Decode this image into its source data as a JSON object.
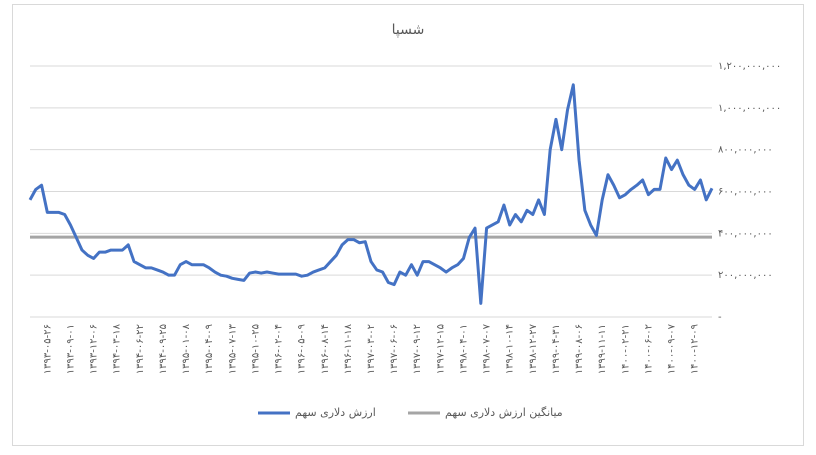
{
  "chart_data": {
    "type": "line",
    "title": "شسپا",
    "categories": [
      null,
      null,
      null,
      "۱۳۹۳-۰۵-۲۶",
      null,
      null,
      null,
      "۱۳۹۳-۰۹-۰۱",
      null,
      null,
      null,
      "۱۳۹۳-۱۲-۰۶",
      null,
      null,
      null,
      "۱۳۹۴-۰۳-۱۸",
      null,
      null,
      null,
      "۱۳۹۴-۰۶-۲۲",
      null,
      null,
      null,
      "۱۳۹۴-۰۹-۲۵",
      null,
      null,
      null,
      "۱۳۹۵-۰۱-۰۸",
      null,
      null,
      null,
      "۱۳۹۵-۰۴-۰۹",
      null,
      null,
      null,
      "۱۳۹۵-۰۷-۱۳",
      null,
      null,
      null,
      "۱۳۹۵-۱۰-۲۵",
      null,
      null,
      null,
      "۱۳۹۶-۰۲-۰۴",
      null,
      null,
      null,
      "۱۳۹۶-۰۵-۰۹",
      null,
      null,
      null,
      "۱۳۹۶-۰۸-۱۴",
      null,
      null,
      null,
      "۱۳۹۶-۱۱-۱۸",
      null,
      null,
      null,
      "۱۳۹۷-۰۳-۰۲",
      null,
      null,
      null,
      "۱۳۹۷-۰۶-۰۶",
      null,
      null,
      null,
      "۱۳۹۷-۰۹-۱۲",
      null,
      null,
      null,
      "۱۳۹۷-۱۲-۱۵",
      null,
      null,
      null,
      "۱۳۹۸-۰۴-۰۱",
      null,
      null,
      null,
      "۱۳۹۸-۰۷-۰۷",
      null,
      null,
      null,
      "۱۳۹۸-۱۰-۱۴",
      null,
      null,
      null,
      "۱۳۹۸-۱۲-۲۷",
      null,
      null,
      null,
      "۱۳۹۹-۰۴-۳۱",
      null,
      null,
      null,
      "۱۳۹۹-۰۸-۰۶",
      null,
      null,
      null,
      "۱۳۹۹-۱۱-۱۱",
      null,
      null,
      null,
      "۱۴۰۰-۰۲-۲۱",
      null,
      null,
      null,
      "۱۴۰۰-۰۶-۰۲",
      null,
      null,
      null,
      "۱۴۰۰-۰۹-۰۷",
      null,
      null,
      null,
      "۱۴۰۰-۱۲-۰۹",
      null,
      null,
      null
    ],
    "series": [
      {
        "name": "ارزش دلاری سهم",
        "color": "#4472c4",
        "values": [
          560000000,
          610000000,
          630000000,
          500000000,
          500000000,
          500000000,
          490000000,
          440000000,
          380000000,
          320000000,
          295000000,
          280000000,
          310000000,
          310000000,
          320000000,
          320000000,
          320000000,
          345000000,
          265000000,
          250000000,
          235000000,
          235000000,
          225000000,
          215000000,
          200000000,
          200000000,
          250000000,
          265000000,
          250000000,
          250000000,
          250000000,
          235000000,
          215000000,
          200000000,
          195000000,
          185000000,
          180000000,
          175000000,
          210000000,
          215000000,
          210000000,
          215000000,
          210000000,
          205000000,
          205000000,
          205000000,
          205000000,
          195000000,
          200000000,
          215000000,
          225000000,
          235000000,
          265000000,
          295000000,
          345000000,
          370000000,
          370000000,
          355000000,
          360000000,
          265000000,
          225000000,
          215000000,
          165000000,
          155000000,
          215000000,
          200000000,
          250000000,
          200000000,
          265000000,
          265000000,
          250000000,
          235000000,
          215000000,
          235000000,
          250000000,
          280000000,
          380000000,
          425000000,
          65000000,
          425000000,
          440000000,
          455000000,
          535000000,
          440000000,
          490000000,
          455000000,
          510000000,
          490000000,
          560000000,
          490000000,
          800000000,
          945000000,
          800000000,
          990000000,
          1110000000,
          750000000,
          510000000,
          440000000,
          390000000,
          560000000,
          680000000,
          630000000,
          570000000,
          585000000,
          610000000,
          630000000,
          655000000,
          585000000,
          610000000,
          610000000,
          760000000,
          705000000,
          750000000,
          680000000,
          630000000,
          610000000,
          655000000,
          560000000,
          615000000
        ]
      },
      {
        "name": "میانگین ارزش دلاری سهم",
        "color": "#a5a5a5",
        "values": [
          382000000,
          382000000,
          382000000,
          382000000,
          382000000,
          382000000,
          382000000,
          382000000,
          382000000,
          382000000,
          382000000,
          382000000,
          382000000,
          382000000,
          382000000,
          382000000,
          382000000,
          382000000,
          382000000,
          382000000,
          382000000,
          382000000,
          382000000,
          382000000,
          382000000,
          382000000,
          382000000,
          382000000,
          382000000,
          382000000,
          382000000,
          382000000,
          382000000,
          382000000,
          382000000,
          382000000,
          382000000,
          382000000,
          382000000,
          382000000,
          382000000,
          382000000,
          382000000,
          382000000,
          382000000,
          382000000,
          382000000,
          382000000,
          382000000,
          382000000,
          382000000,
          382000000,
          382000000,
          382000000,
          382000000,
          382000000,
          382000000,
          382000000,
          382000000,
          382000000,
          382000000,
          382000000,
          382000000,
          382000000,
          382000000,
          382000000,
          382000000,
          382000000,
          382000000,
          382000000,
          382000000,
          382000000,
          382000000,
          382000000,
          382000000,
          382000000,
          382000000,
          382000000,
          382000000,
          382000000,
          382000000,
          382000000,
          382000000,
          382000000,
          382000000,
          382000000,
          382000000,
          382000000,
          382000000,
          382000000,
          382000000,
          382000000,
          382000000,
          382000000,
          382000000,
          382000000,
          382000000,
          382000000,
          382000000,
          382000000,
          382000000,
          382000000,
          382000000,
          382000000,
          382000000,
          382000000,
          382000000,
          382000000,
          382000000,
          382000000,
          382000000,
          382000000,
          382000000,
          382000000,
          382000000,
          382000000,
          382000000,
          382000000,
          382000000
        ]
      }
    ],
    "ylim": [
      0,
      1200000000
    ],
    "yticks": [
      {
        "value": 0,
        "label": "-"
      },
      {
        "value": 200000000,
        "label": "۲۰۰,۰۰۰,۰۰۰"
      },
      {
        "value": 400000000,
        "label": "۴۰۰,۰۰۰,۰۰۰"
      },
      {
        "value": 600000000,
        "label": "۶۰۰,۰۰۰,۰۰۰"
      },
      {
        "value": 800000000,
        "label": "۸۰۰,۰۰۰,۰۰۰"
      },
      {
        "value": 1000000000,
        "label": "۱,۰۰۰,۰۰۰,۰۰۰"
      },
      {
        "value": 1200000000,
        "label": "۱,۲۰۰,۰۰۰,۰۰۰"
      }
    ],
    "grid": true
  }
}
